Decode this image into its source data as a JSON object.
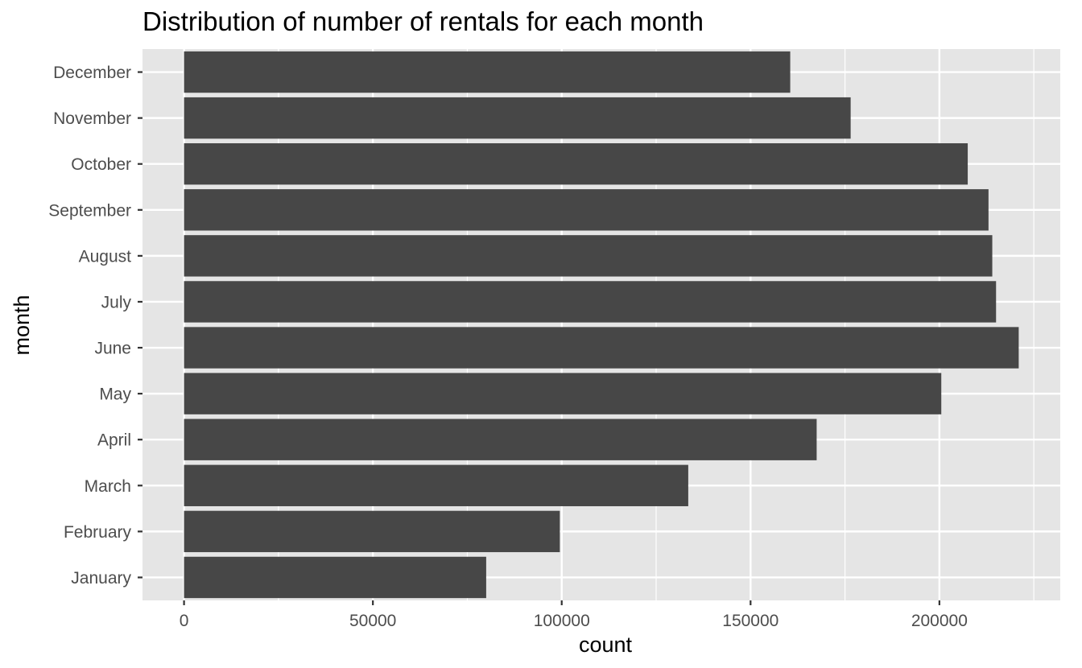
{
  "chart_data": {
    "type": "bar",
    "orientation": "horizontal",
    "title": "Distribution of number of rentals for each month",
    "xlabel": "count",
    "ylabel": "month",
    "categories": [
      "January",
      "February",
      "March",
      "April",
      "May",
      "June",
      "July",
      "August",
      "September",
      "October",
      "November",
      "December"
    ],
    "values": [
      80000,
      99500,
      133500,
      167500,
      200500,
      221000,
      215000,
      214000,
      213000,
      207500,
      176500,
      160500
    ],
    "xlim": [
      -11000,
      232000
    ],
    "xticks": [
      0,
      50000,
      100000,
      150000,
      200000
    ],
    "xtick_labels": [
      "0",
      "50000",
      "100000",
      "150000",
      "200000"
    ],
    "grid": true,
    "legend": "none",
    "colors": {
      "bar": "#474747",
      "panel": "#e5e5e5",
      "grid": "#ffffff",
      "tick_text": "#4d4d4d"
    }
  }
}
